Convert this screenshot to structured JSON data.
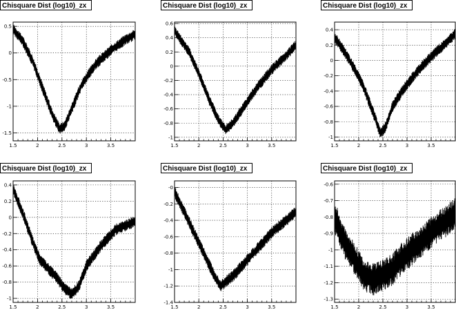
{
  "chart_data": [
    {
      "type": "line",
      "title": "Chisquare Dist (log10)_zx",
      "xlim": [
        1.5,
        4.0
      ],
      "ylim": [
        -1.65,
        0.58
      ],
      "xticks": [
        "1.5",
        "2",
        "2.5",
        "3",
        "3.5"
      ],
      "xtick_values": [
        1.5,
        2.0,
        2.5,
        3.0,
        3.5
      ],
      "yticks": [
        "-1.5",
        "-1",
        "-0.5",
        "0",
        "0.5"
      ],
      "ytick_values": [
        -1.5,
        -1.0,
        -0.5,
        0.0,
        0.5
      ],
      "grid": true,
      "band_amplitude": 0.07,
      "x": [
        1.5,
        1.7,
        1.9,
        2.1,
        2.3,
        2.45,
        2.55,
        2.7,
        2.9,
        3.2,
        3.5,
        3.8,
        4.0
      ],
      "y": [
        0.45,
        0.22,
        -0.15,
        -0.65,
        -1.15,
        -1.42,
        -1.38,
        -1.05,
        -0.6,
        -0.2,
        0.05,
        0.25,
        0.35
      ]
    },
    {
      "type": "line",
      "title": "Chisquare Dist (log10)_zx",
      "xlim": [
        1.5,
        4.0
      ],
      "ylim": [
        -1.05,
        0.62
      ],
      "xticks": [
        "1.5",
        "2",
        "2.5",
        "3",
        "3.5"
      ],
      "xtick_values": [
        1.5,
        2.0,
        2.5,
        3.0,
        3.5
      ],
      "yticks": [
        "-1",
        "-0.8",
        "-0.6",
        "-0.4",
        "-0.2",
        "0",
        "0.2",
        "0.4",
        "0.6"
      ],
      "ytick_values": [
        -1.0,
        -0.8,
        -0.6,
        -0.4,
        -0.2,
        0.0,
        0.2,
        0.4,
        0.6
      ],
      "grid": true,
      "band_amplitude": 0.05,
      "x": [
        1.5,
        1.8,
        2.0,
        2.2,
        2.4,
        2.55,
        2.7,
        2.9,
        3.2,
        3.5,
        3.8,
        4.0
      ],
      "y": [
        0.5,
        0.2,
        -0.1,
        -0.45,
        -0.75,
        -0.9,
        -0.8,
        -0.6,
        -0.3,
        -0.05,
        0.15,
        0.3
      ]
    },
    {
      "type": "line",
      "title": "Chisquare Dist (log10)_zx",
      "xlim": [
        1.5,
        4.0
      ],
      "ylim": [
        -1.05,
        0.5
      ],
      "xticks": [
        "1.5",
        "2",
        "2.5",
        "3",
        "3.5"
      ],
      "xtick_values": [
        1.5,
        2.0,
        2.5,
        3.0,
        3.5
      ],
      "yticks": [
        "-1",
        "-0.8",
        "-0.6",
        "-0.4",
        "-0.2",
        "0",
        "0.2",
        "0.4"
      ],
      "ytick_values": [
        -1.0,
        -0.8,
        -0.6,
        -0.4,
        -0.2,
        0.0,
        0.2,
        0.4
      ],
      "grid": true,
      "band_amplitude": 0.05,
      "x": [
        1.5,
        1.7,
        1.9,
        2.1,
        2.3,
        2.45,
        2.55,
        2.7,
        2.9,
        3.2,
        3.5,
        3.8,
        4.0
      ],
      "y": [
        0.3,
        0.12,
        -0.1,
        -0.35,
        -0.68,
        -0.95,
        -0.88,
        -0.6,
        -0.4,
        -0.15,
        0.05,
        0.22,
        0.35
      ]
    },
    {
      "type": "line",
      "title": "Chisquare Dist (log10)_zx",
      "xlim": [
        1.5,
        4.0
      ],
      "ylim": [
        -1.05,
        0.45
      ],
      "xticks": [
        "1.5",
        "2",
        "2.5",
        "3",
        "3.5"
      ],
      "xtick_values": [
        1.5,
        2.0,
        2.5,
        3.0,
        3.5
      ],
      "yticks": [
        "-1",
        "-0.8",
        "-0.6",
        "-0.4",
        "-0.2",
        "0",
        "0.2",
        "0.4"
      ],
      "ytick_values": [
        -1.0,
        -0.8,
        -0.6,
        -0.4,
        -0.2,
        0.0,
        0.2,
        0.4
      ],
      "grid": true,
      "band_amplitude": 0.05,
      "x": [
        1.5,
        1.7,
        1.9,
        2.05,
        2.2,
        2.4,
        2.55,
        2.7,
        2.85,
        3.0,
        3.3,
        3.6,
        4.0
      ],
      "y": [
        0.35,
        0.05,
        -0.3,
        -0.52,
        -0.62,
        -0.75,
        -0.88,
        -0.95,
        -0.85,
        -0.6,
        -0.35,
        -0.15,
        -0.05
      ]
    },
    {
      "type": "line",
      "title": "Chisquare Dist (log10)_zx",
      "xlim": [
        1.5,
        4.0
      ],
      "ylim": [
        -1.4,
        0.08
      ],
      "xticks": [
        "1.5",
        "2",
        "2.5",
        "3",
        "3.5"
      ],
      "xtick_values": [
        1.5,
        2.0,
        2.5,
        3.0,
        3.5
      ],
      "yticks": [
        "-1.4",
        "-1.2",
        "-1",
        "-0.8",
        "-0.6",
        "-0.4",
        "-0.2",
        "-0"
      ],
      "ytick_values": [
        -1.4,
        -1.2,
        -1.0,
        -0.8,
        -0.6,
        -0.4,
        -0.2,
        0.0
      ],
      "grid": true,
      "band_amplitude": 0.05,
      "x": [
        1.5,
        1.7,
        1.9,
        2.1,
        2.3,
        2.45,
        2.55,
        2.7,
        2.9,
        3.2,
        3.5,
        3.8,
        4.0
      ],
      "y": [
        -0.05,
        -0.3,
        -0.55,
        -0.8,
        -1.05,
        -1.2,
        -1.15,
        -1.08,
        -0.95,
        -0.75,
        -0.55,
        -0.4,
        -0.3
      ]
    },
    {
      "type": "line",
      "title": "Chisquare Dist (log10)_zx",
      "xlim": [
        1.5,
        4.0
      ],
      "ylim": [
        -1.32,
        -0.58
      ],
      "xticks": [
        "1.5",
        "2",
        "2.5",
        "3",
        "3.5"
      ],
      "xtick_values": [
        1.5,
        2.0,
        2.5,
        3.0,
        3.5
      ],
      "yticks": [
        "-1.3",
        "-1.2",
        "-1.1",
        "-1",
        "-0.9",
        "-0.8",
        "-0.7",
        "-0.6"
      ],
      "ytick_values": [
        -1.3,
        -1.2,
        -1.1,
        -1.0,
        -0.9,
        -0.8,
        -0.7,
        -0.6
      ],
      "grid": true,
      "band_amplitude": 0.07,
      "x": [
        1.5,
        1.7,
        1.9,
        2.1,
        2.3,
        2.5,
        2.7,
        2.9,
        3.1,
        3.4,
        3.7,
        4.0
      ],
      "y": [
        -0.8,
        -0.95,
        -1.05,
        -1.15,
        -1.18,
        -1.15,
        -1.12,
        -1.05,
        -1.0,
        -0.92,
        -0.85,
        -0.78
      ]
    }
  ]
}
